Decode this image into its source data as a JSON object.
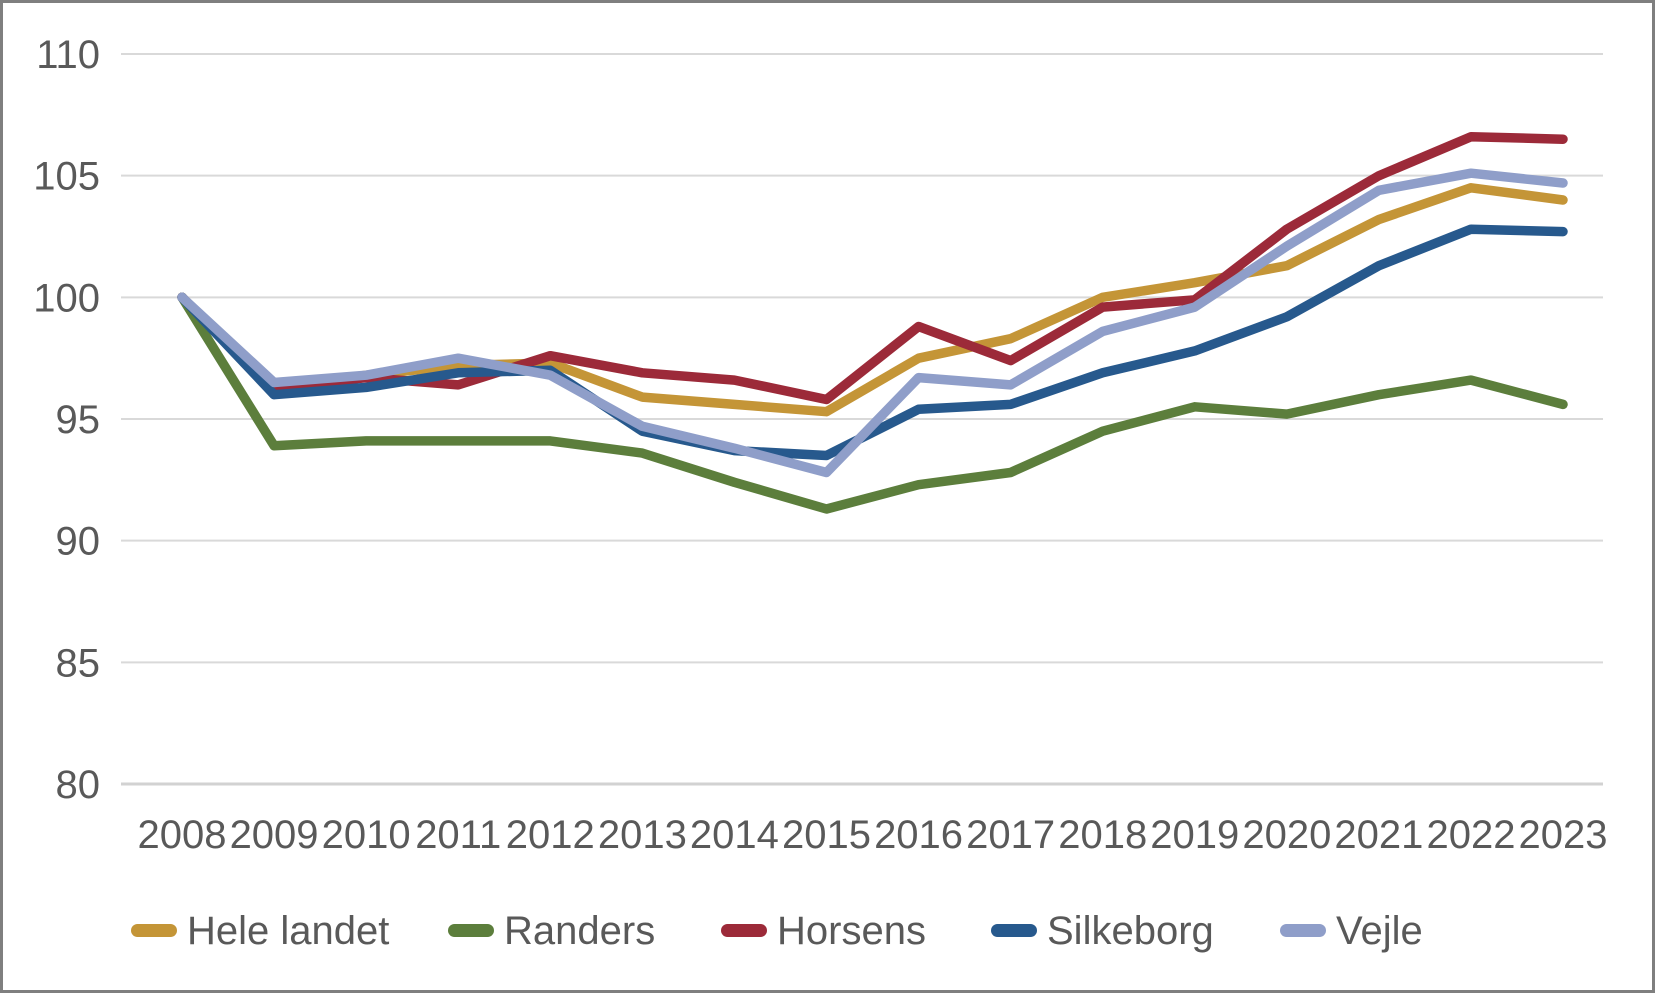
{
  "chart_data": {
    "type": "line",
    "title": "",
    "xlabel": "",
    "ylabel": "",
    "categories": [
      "2008",
      "2009",
      "2010",
      "2011",
      "2012",
      "2013",
      "2014",
      "2015",
      "2016",
      "2017",
      "2018",
      "2019",
      "2020",
      "2021",
      "2022",
      "2023"
    ],
    "y_axis": {
      "min": 80,
      "max": 110,
      "step": 5,
      "ticks": [
        "80",
        "85",
        "90",
        "95",
        "100",
        "105",
        "110"
      ]
    },
    "grid": true,
    "legend_position": "bottom",
    "series": [
      {
        "name": "Hele landet",
        "slug": "hele-landet",
        "color": "#c49537",
        "values": [
          100,
          96.3,
          96.8,
          97.2,
          97.3,
          95.9,
          95.6,
          95.3,
          97.5,
          98.3,
          100.0,
          100.6,
          101.3,
          103.2,
          104.5,
          104.0
        ]
      },
      {
        "name": "Randers",
        "slug": "randers",
        "color": "#5c7e3c",
        "values": [
          100,
          93.9,
          94.1,
          94.1,
          94.1,
          93.6,
          92.4,
          91.3,
          92.3,
          92.8,
          94.5,
          95.5,
          95.2,
          96.0,
          96.6,
          95.6
        ]
      },
      {
        "name": "Horsens",
        "slug": "horsens",
        "color": "#9c2a39",
        "values": [
          100,
          96.2,
          96.7,
          96.4,
          97.6,
          96.9,
          96.6,
          95.8,
          98.8,
          97.4,
          99.6,
          99.9,
          102.8,
          105.0,
          106.6,
          106.5
        ]
      },
      {
        "name": "Silkeborg",
        "slug": "silkeborg",
        "color": "#27598d",
        "values": [
          100,
          96.0,
          96.3,
          96.9,
          97.0,
          94.5,
          93.7,
          93.5,
          95.4,
          95.6,
          96.9,
          97.8,
          99.2,
          101.3,
          102.8,
          102.7
        ]
      },
      {
        "name": "Vejle",
        "slug": "vejle",
        "color": "#8f9ec9",
        "values": [
          100,
          96.5,
          96.8,
          97.5,
          96.8,
          94.7,
          93.8,
          92.8,
          96.7,
          96.4,
          98.6,
          99.6,
          102.1,
          104.4,
          105.1,
          104.7
        ]
      }
    ]
  },
  "colors": {
    "grid": "#d9d9d9",
    "text": "#595959",
    "border": "#7f7f7f",
    "background": "#ffffff"
  }
}
